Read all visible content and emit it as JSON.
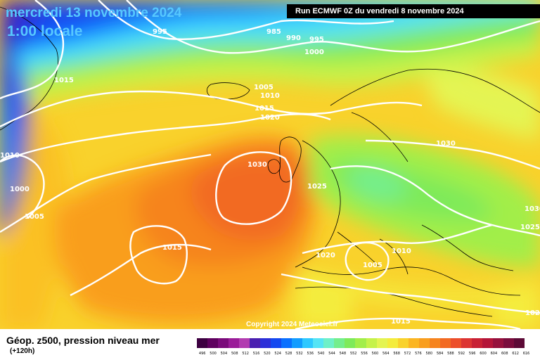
{
  "header": {
    "date": "mercredi 13 novembre 2024",
    "time": "1:00 locale",
    "run": "Run ECMWF 0Z du vendredi 8 novembre 2024"
  },
  "copyright": "Copyright 2024 Meteociel.fr",
  "legend": {
    "title": "Géop. z500, pression niveau mer",
    "subtitle": "(+120h)",
    "ticks": [
      "496",
      "500",
      "504",
      "508",
      "512",
      "516",
      "520",
      "524",
      "528",
      "532",
      "536",
      "540",
      "544",
      "548",
      "552",
      "556",
      "560",
      "564",
      "568",
      "572",
      "576",
      "580",
      "584",
      "588",
      "592",
      "596",
      "600",
      "604",
      "608",
      "612",
      "616"
    ],
    "colors": [
      "#3d0041",
      "#5e005e",
      "#7a0a7a",
      "#9a1c98",
      "#b23cb0",
      "#4a1fb0",
      "#2c2fd8",
      "#1448f0",
      "#0a70ff",
      "#129cff",
      "#2ec8ff",
      "#55e4f5",
      "#6ef0c8",
      "#74ee8c",
      "#7eea5a",
      "#a2ee4a",
      "#c6f24a",
      "#e4f452",
      "#f4ec3c",
      "#f9d22c",
      "#fbb522",
      "#f99e1e",
      "#f6841e",
      "#f26a22",
      "#ec4e2a",
      "#dc3432",
      "#c82034",
      "#b41438",
      "#96103c",
      "#7a0c3c",
      "#5c0a36"
    ]
  },
  "isobars": [
    "995",
    "985",
    "990",
    "995",
    "1000",
    "1015",
    "1005",
    "1010",
    "1015",
    "1020",
    "1010",
    "1000",
    "1005",
    "1030",
    "1025",
    "1030",
    "1015",
    "1020",
    "1010",
    "1005",
    "1025",
    "1020",
    "1015"
  ],
  "icons": [
    "isobar-line-icon",
    "coastline-icon"
  ]
}
